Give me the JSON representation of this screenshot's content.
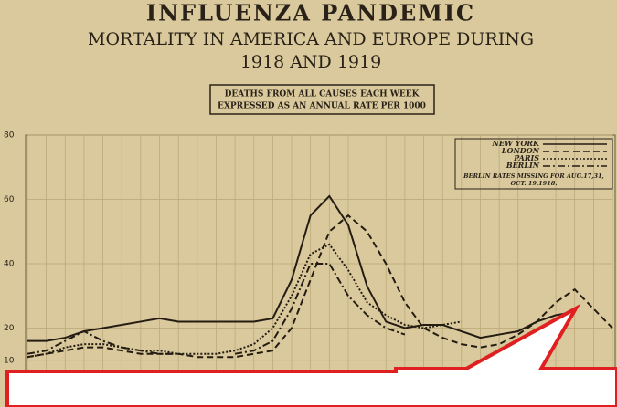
{
  "chart_data": {
    "type": "line",
    "title": "INFLUENZA PANDEMIC",
    "subtitle": "MORTALITY IN AMERICA AND EUROPE DURING",
    "subtitle2": "1918 AND 1919",
    "note": [
      "DEATHS FROM ALL CAUSES EACH WEEK",
      "EXPRESSED AS AN ANNUAL RATE PER 1000"
    ],
    "legend_note": [
      "BERLIN RATES MISSING FOR AUG.17,31,",
      "OCT. 19,1918."
    ],
    "categories": [
      null,
      null,
      null,
      null,
      null,
      null,
      null,
      null,
      null,
      null,
      null,
      null,
      null,
      null,
      null,
      null,
      null,
      null,
      null,
      null,
      null,
      null,
      null,
      null,
      null,
      null,
      null,
      null,
      null,
      null,
      null,
      null
    ],
    "ylim": [
      0,
      80
    ],
    "yticks": [
      10,
      20,
      40,
      60,
      80
    ],
    "grid": true,
    "legend": "top-right",
    "series": [
      {
        "name": "NEW YORK",
        "color": "#241c12",
        "dash": "none",
        "values": [
          16,
          16,
          17,
          19,
          20,
          21,
          22,
          23,
          22,
          22,
          22,
          22,
          22,
          23,
          35,
          55,
          61,
          52,
          33,
          22,
          20,
          21,
          21,
          19,
          17,
          18,
          19,
          22,
          24,
          25,
          null,
          null
        ]
      },
      {
        "name": "LONDON",
        "color": "#241c12",
        "dash": "7 4",
        "values": [
          11,
          12,
          13,
          14,
          14,
          13,
          12,
          12,
          12,
          11,
          11,
          11,
          12,
          13,
          20,
          35,
          50,
          55,
          50,
          40,
          28,
          20,
          17,
          15,
          14,
          15,
          18,
          22,
          28,
          32,
          26,
          20
        ]
      },
      {
        "name": "PARIS",
        "color": "#241c12",
        "dash": "2 2",
        "values": [
          11,
          12,
          14,
          15,
          15,
          14,
          13,
          13,
          12,
          12,
          12,
          13,
          15,
          20,
          30,
          43,
          46,
          38,
          28,
          24,
          21,
          20,
          21,
          22,
          null,
          null,
          null,
          null,
          null,
          null,
          null,
          null
        ]
      },
      {
        "name": "BERLIN",
        "color": "#241c12",
        "dash": "8 3 2 3",
        "values": [
          12,
          13,
          16,
          19,
          16,
          14,
          13,
          12,
          12,
          null,
          null,
          12,
          13,
          16,
          26,
          40,
          40,
          30,
          24,
          20,
          18,
          null,
          null,
          null,
          null,
          null,
          null,
          null,
          null,
          null,
          null,
          null
        ]
      }
    ]
  }
}
